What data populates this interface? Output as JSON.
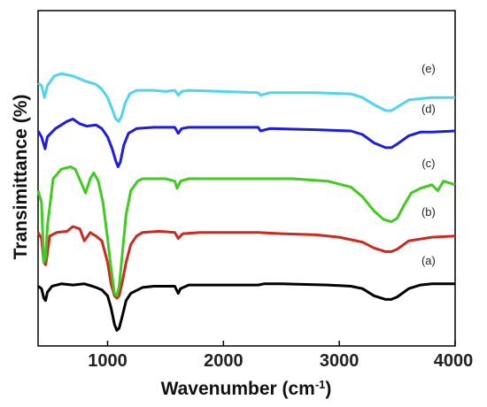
{
  "chart_data": {
    "type": "line",
    "title": "",
    "xlabel": "Wavenumber (cm",
    "xlabel_sup": "-1",
    "xlabel_close": ")",
    "ylabel": "Transimittance (%)",
    "xlim": [
      400,
      4000
    ],
    "xticks": [
      "1000",
      "2000",
      "3000",
      "4000"
    ],
    "xtick_values": [
      1000,
      2000,
      3000,
      4000
    ],
    "y_ticks_shown": false,
    "y_units": "arbitrary transmittance (stacked, top = higher)",
    "grid": false,
    "legend": "labels at right end of each curve",
    "series": [
      {
        "name": "(a)",
        "color": "#000000",
        "points": [
          [
            400,
            80
          ],
          [
            430,
            78
          ],
          [
            450,
            70
          ],
          [
            465,
            68
          ],
          [
            480,
            75
          ],
          [
            520,
            80
          ],
          [
            600,
            82
          ],
          [
            700,
            81
          ],
          [
            800,
            82
          ],
          [
            870,
            80
          ],
          [
            900,
            79
          ],
          [
            950,
            77
          ],
          [
            1000,
            72
          ],
          [
            1030,
            62
          ],
          [
            1060,
            48
          ],
          [
            1080,
            43
          ],
          [
            1100,
            45
          ],
          [
            1130,
            56
          ],
          [
            1160,
            68
          ],
          [
            1200,
            74
          ],
          [
            1300,
            79
          ],
          [
            1400,
            80
          ],
          [
            1500,
            80
          ],
          [
            1580,
            80
          ],
          [
            1610,
            74
          ],
          [
            1630,
            78
          ],
          [
            1700,
            81
          ],
          [
            2000,
            81
          ],
          [
            2300,
            81
          ],
          [
            2350,
            82
          ],
          [
            2500,
            82
          ],
          [
            2900,
            81
          ],
          [
            3100,
            80
          ],
          [
            3200,
            78
          ],
          [
            3300,
            72
          ],
          [
            3400,
            69
          ],
          [
            3450,
            69
          ],
          [
            3500,
            71
          ],
          [
            3600,
            78
          ],
          [
            3700,
            81
          ],
          [
            3800,
            82
          ],
          [
            4000,
            82
          ]
        ]
      },
      {
        "name": "(b)",
        "color": "#cc2a1e",
        "points": [
          [
            400,
            125
          ],
          [
            430,
            120
          ],
          [
            450,
            100
          ],
          [
            465,
            98
          ],
          [
            475,
            104
          ],
          [
            500,
            122
          ],
          [
            560,
            125
          ],
          [
            650,
            126
          ],
          [
            700,
            130
          ],
          [
            760,
            128
          ],
          [
            800,
            118
          ],
          [
            850,
            125
          ],
          [
            900,
            122
          ],
          [
            950,
            118
          ],
          [
            1000,
            100
          ],
          [
            1030,
            82
          ],
          [
            1060,
            72
          ],
          [
            1080,
            70
          ],
          [
            1100,
            72
          ],
          [
            1130,
            85
          ],
          [
            1160,
            100
          ],
          [
            1200,
            115
          ],
          [
            1250,
            122
          ],
          [
            1300,
            125
          ],
          [
            1450,
            126
          ],
          [
            1580,
            125
          ],
          [
            1610,
            120
          ],
          [
            1650,
            124
          ],
          [
            1800,
            125
          ],
          [
            2300,
            125
          ],
          [
            2500,
            124
          ],
          [
            2800,
            123
          ],
          [
            3000,
            121
          ],
          [
            3200,
            117
          ],
          [
            3300,
            112
          ],
          [
            3400,
            109
          ],
          [
            3450,
            109
          ],
          [
            3500,
            111
          ],
          [
            3600,
            118
          ],
          [
            3800,
            121
          ],
          [
            4000,
            122
          ]
        ]
      },
      {
        "name": "(c)",
        "color": "#3fcc1f",
        "points": [
          [
            400,
            160
          ],
          [
            430,
            150
          ],
          [
            450,
            100
          ],
          [
            465,
            104
          ],
          [
            480,
            130
          ],
          [
            530,
            170
          ],
          [
            600,
            178
          ],
          [
            680,
            180
          ],
          [
            720,
            178
          ],
          [
            780,
            165
          ],
          [
            810,
            158
          ],
          [
            850,
            170
          ],
          [
            880,
            175
          ],
          [
            920,
            168
          ],
          [
            960,
            150
          ],
          [
            1000,
            120
          ],
          [
            1030,
            95
          ],
          [
            1060,
            74
          ],
          [
            1080,
            72
          ],
          [
            1100,
            80
          ],
          [
            1130,
            110
          ],
          [
            1160,
            140
          ],
          [
            1200,
            160
          ],
          [
            1260,
            168
          ],
          [
            1300,
            170
          ],
          [
            1500,
            170
          ],
          [
            1580,
            168
          ],
          [
            1600,
            162
          ],
          [
            1630,
            168
          ],
          [
            1700,
            170
          ],
          [
            2000,
            170
          ],
          [
            2300,
            170
          ],
          [
            2600,
            170
          ],
          [
            2900,
            168
          ],
          [
            3100,
            163
          ],
          [
            3200,
            155
          ],
          [
            3300,
            143
          ],
          [
            3380,
            136
          ],
          [
            3450,
            134
          ],
          [
            3500,
            137
          ],
          [
            3560,
            148
          ],
          [
            3620,
            158
          ],
          [
            3700,
            162
          ],
          [
            3800,
            165
          ],
          [
            3850,
            160
          ],
          [
            3900,
            168
          ],
          [
            4000,
            165
          ]
        ]
      },
      {
        "name": "(d)",
        "color": "#1d1de0",
        "points": [
          [
            400,
            210
          ],
          [
            430,
            205
          ],
          [
            460,
            195
          ],
          [
            480,
            205
          ],
          [
            550,
            212
          ],
          [
            650,
            218
          ],
          [
            700,
            220
          ],
          [
            760,
            216
          ],
          [
            820,
            214
          ],
          [
            900,
            215
          ],
          [
            950,
            212
          ],
          [
            1000,
            205
          ],
          [
            1040,
            195
          ],
          [
            1070,
            185
          ],
          [
            1090,
            180
          ],
          [
            1110,
            184
          ],
          [
            1140,
            198
          ],
          [
            1180,
            208
          ],
          [
            1250,
            212
          ],
          [
            1400,
            213
          ],
          [
            1500,
            213
          ],
          [
            1580,
            213
          ],
          [
            1610,
            208
          ],
          [
            1640,
            212
          ],
          [
            1700,
            213
          ],
          [
            2000,
            213
          ],
          [
            2300,
            213
          ],
          [
            2320,
            210
          ],
          [
            2400,
            212
          ],
          [
            2800,
            211
          ],
          [
            3100,
            210
          ],
          [
            3200,
            207
          ],
          [
            3300,
            200
          ],
          [
            3400,
            196
          ],
          [
            3450,
            196
          ],
          [
            3500,
            199
          ],
          [
            3600,
            206
          ],
          [
            3700,
            209
          ],
          [
            3800,
            209
          ],
          [
            4000,
            210
          ]
        ]
      },
      {
        "name": "(e)",
        "color": "#4fd5ef",
        "points": [
          [
            400,
            250
          ],
          [
            430,
            248
          ],
          [
            455,
            238
          ],
          [
            480,
            248
          ],
          [
            540,
            256
          ],
          [
            600,
            258
          ],
          [
            700,
            256
          ],
          [
            800,
            252
          ],
          [
            900,
            249
          ],
          [
            950,
            245
          ],
          [
            1000,
            238
          ],
          [
            1040,
            228
          ],
          [
            1070,
            220
          ],
          [
            1095,
            218
          ],
          [
            1120,
            222
          ],
          [
            1150,
            233
          ],
          [
            1190,
            241
          ],
          [
            1250,
            244
          ],
          [
            1400,
            244
          ],
          [
            1500,
            243
          ],
          [
            1580,
            244
          ],
          [
            1610,
            240
          ],
          [
            1640,
            243
          ],
          [
            1700,
            244
          ],
          [
            2000,
            243
          ],
          [
            2300,
            242
          ],
          [
            2320,
            240
          ],
          [
            2400,
            242
          ],
          [
            2800,
            242
          ],
          [
            3100,
            241
          ],
          [
            3200,
            238
          ],
          [
            3300,
            232
          ],
          [
            3400,
            227
          ],
          [
            3450,
            227
          ],
          [
            3500,
            230
          ],
          [
            3600,
            236
          ],
          [
            3700,
            237
          ],
          [
            3800,
            238
          ],
          [
            4000,
            238
          ]
        ]
      }
    ]
  }
}
